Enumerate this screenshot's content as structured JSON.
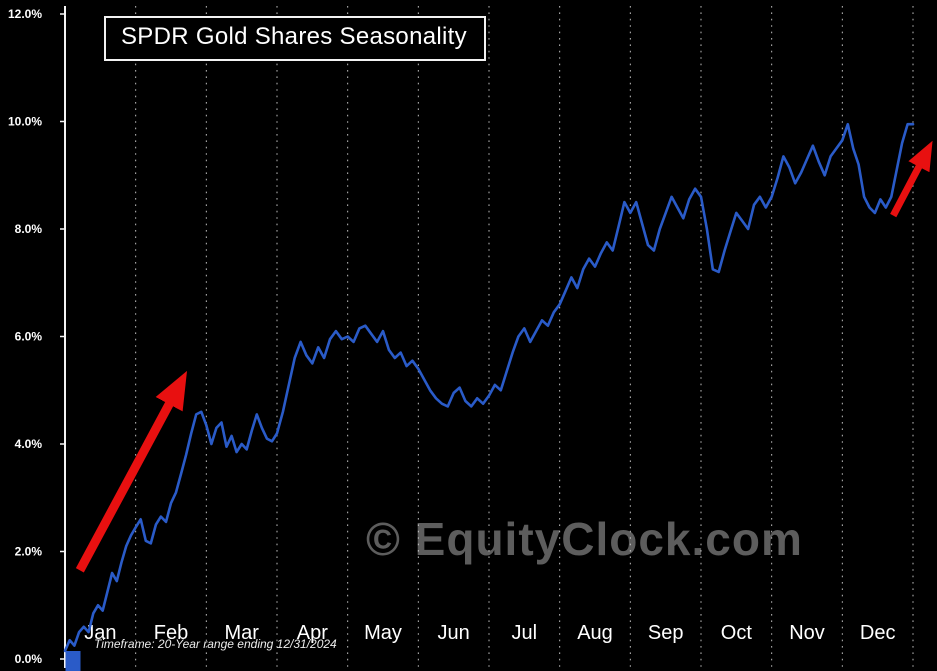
{
  "title": "SPDR Gold Shares Seasonality",
  "footnote": "Timeframe: 20-Year range ending 12/31/2024",
  "watermark": "© EquityClock.com",
  "colors": {
    "background": "#000000",
    "line": "#2a5bc8",
    "grid": "#c8c8c8",
    "axis": "#f5f5f5",
    "text": "#ffffff",
    "watermark": "#5d5d5d",
    "arrow": "#e81010"
  },
  "chart_data": {
    "type": "line",
    "title": "SPDR Gold Shares Seasonality",
    "subtitle": "Timeframe: 20-Year range ending 12/31/2024",
    "xlabel": "",
    "ylabel": "",
    "ylim": [
      0,
      12
    ],
    "yticks": [
      0,
      2,
      4,
      6,
      8,
      10,
      12
    ],
    "ytick_labels": [
      "0.0%",
      "2.0%",
      "4.0%",
      "6.0%",
      "8.0%",
      "10.0%",
      "12.0%"
    ],
    "categories": [
      "Jan",
      "Feb",
      "Mar",
      "Apr",
      "May",
      "Jun",
      "Jul",
      "Aug",
      "Sep",
      "Oct",
      "Nov",
      "Dec"
    ],
    "grid": "vertical-dashed",
    "legend_position": "none",
    "series": [
      {
        "name": "seasonality",
        "monthly_values": [
          [
            0.15,
            0.35,
            0.25,
            0.5,
            0.6,
            0.5,
            0.85,
            1.0,
            0.9,
            1.25,
            1.6,
            1.45,
            1.8,
            2.1,
            2.3
          ],
          [
            2.45,
            2.6,
            2.2,
            2.15,
            2.5,
            2.65,
            2.55,
            2.9,
            3.1,
            3.45,
            3.8,
            4.2,
            4.55,
            4.6
          ],
          [
            4.35,
            4.0,
            4.3,
            4.4,
            3.95,
            4.15,
            3.85,
            4.0,
            3.9,
            4.25,
            4.55,
            4.3,
            4.1,
            4.05
          ],
          [
            4.2,
            4.6,
            5.1,
            5.6,
            5.9,
            5.65,
            5.5,
            5.8,
            5.6,
            5.95,
            6.1,
            5.95
          ],
          [
            6.0,
            5.9,
            6.15,
            6.2,
            6.05,
            5.9,
            6.1,
            5.75,
            5.6,
            5.7,
            5.45,
            5.55
          ],
          [
            5.4,
            5.2,
            5.0,
            4.85,
            4.75,
            4.7,
            4.95,
            5.05,
            4.8,
            4.7,
            4.85,
            4.75
          ],
          [
            4.9,
            5.1,
            5.0,
            5.35,
            5.7,
            6.0,
            6.15,
            5.9,
            6.1,
            6.3,
            6.2,
            6.45
          ],
          [
            6.6,
            6.85,
            7.1,
            6.9,
            7.25,
            7.45,
            7.3,
            7.55,
            7.75,
            7.6,
            8.05,
            8.5
          ],
          [
            8.3,
            8.5,
            8.1,
            7.7,
            7.6,
            8.0,
            8.3,
            8.6,
            8.4,
            8.2,
            8.55,
            8.75
          ],
          [
            8.6,
            8.0,
            7.25,
            7.2,
            7.6,
            7.95,
            8.3,
            8.15,
            8.0,
            8.45,
            8.6,
            8.4
          ],
          [
            8.6,
            8.95,
            9.35,
            9.15,
            8.85,
            9.05,
            9.3,
            9.55,
            9.25,
            9.0,
            9.35,
            9.5
          ],
          [
            9.65,
            9.95,
            9.5,
            9.2,
            8.6,
            8.4,
            8.3,
            8.55,
            8.4,
            8.6,
            9.1,
            9.6,
            9.95
          ]
        ]
      }
    ],
    "annotations": [
      {
        "type": "arrow",
        "color": "#e81010",
        "from_month_value": [
          0.21,
          1.65
        ],
        "to_month_value": [
          1.6,
          5.05
        ],
        "width": 9
      },
      {
        "type": "arrow",
        "color": "#e81010",
        "from_month_value": [
          11.72,
          8.25
        ],
        "to_month_value": [
          12.18,
          9.4
        ],
        "width": 7
      }
    ]
  }
}
